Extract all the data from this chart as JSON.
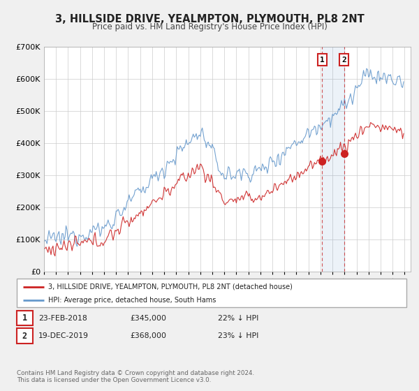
{
  "title": "3, HILLSIDE DRIVE, YEALMPTON, PLYMOUTH, PL8 2NT",
  "subtitle": "Price paid vs. HM Land Registry's House Price Index (HPI)",
  "background_color": "#f0f0f0",
  "plot_bg_color": "#ffffff",
  "hpi_color": "#6699cc",
  "price_color": "#cc2222",
  "ylim": [
    0,
    700000
  ],
  "yticks": [
    0,
    100000,
    200000,
    300000,
    400000,
    500000,
    600000,
    700000
  ],
  "xlim_start": 1995.0,
  "xlim_end": 2025.5,
  "sale1_date": 2018.13,
  "sale1_price": 345000,
  "sale2_date": 2019.97,
  "sale2_price": 368000,
  "legend_line1": "3, HILLSIDE DRIVE, YEALMPTON, PLYMOUTH, PL8 2NT (detached house)",
  "legend_line2": "HPI: Average price, detached house, South Hams",
  "annotation1_label": "1",
  "annotation1_date": "23-FEB-2018",
  "annotation1_price": "£345,000",
  "annotation1_hpi": "22% ↓ HPI",
  "annotation2_label": "2",
  "annotation2_date": "19-DEC-2019",
  "annotation2_price": "£368,000",
  "annotation2_hpi": "23% ↓ HPI",
  "footer1": "Contains HM Land Registry data © Crown copyright and database right 2024.",
  "footer2": "This data is licensed under the Open Government Licence v3.0."
}
